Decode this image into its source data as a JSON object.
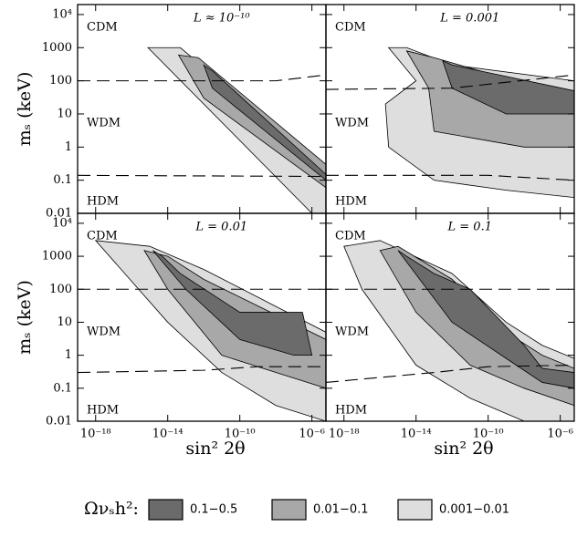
{
  "axes": {
    "log_x": true,
    "log_y": true,
    "xlim": [
      1e-19,
      6e-06
    ],
    "xticks": [
      {
        "value": 1e-18,
        "label": "10⁻¹⁸"
      },
      {
        "value": 1e-14,
        "label": "10⁻¹⁴"
      },
      {
        "value": 1e-10,
        "label": "10⁻¹⁰"
      },
      {
        "value": 1e-06,
        "label": "10⁻⁶"
      }
    ],
    "ylim": [
      0.01,
      20000
    ],
    "yticks": [
      {
        "value": 10000,
        "label": "10⁴"
      },
      1000,
      100,
      10,
      1,
      0.1,
      0.01
    ]
  },
  "chart_data": [
    {
      "type": "region",
      "title": "L ≈ 10⁻¹⁰",
      "annotations": [
        "CDM",
        "WDM",
        "HDM"
      ],
      "regions": [
        {
          "color": "#dedede",
          "x": [
            8e-16,
            5e-14,
            6e-06,
            6e-06,
            1e-06
          ],
          "y": [
            1000,
            1000,
            0.2,
            0.01,
            0.01
          ]
        },
        {
          "color": "#a8a8a8",
          "x": [
            4e-14,
            5e-13,
            6e-06,
            6e-06,
            1e-12
          ],
          "y": [
            600,
            500,
            0.3,
            0.06,
            30
          ]
        },
        {
          "color": "#6b6b6b",
          "x": [
            1e-12,
            3e-12,
            6e-06,
            6e-06,
            3e-12
          ],
          "y": [
            300,
            200,
            0.15,
            0.1,
            60
          ]
        }
      ],
      "dashed_lines": [
        {
          "x": [
            1e-19,
            1e-08,
            6e-06
          ],
          "y": [
            100,
            100,
            150
          ]
        },
        {
          "x": [
            1e-19,
            6e-06
          ],
          "y": [
            0.14,
            0.13
          ]
        }
      ],
      "ylabel": "mₛ (keV)"
    },
    {
      "type": "region",
      "title": "L = 0.001",
      "annotations": [
        "CDM",
        "WDM",
        "HDM"
      ],
      "regions": [
        {
          "color": "#dedede",
          "x": [
            3e-16,
            3e-15,
            1e-12,
            6e-06,
            6e-06,
            1e-09,
            1e-13,
            3e-16,
            2e-16,
            1e-14
          ],
          "y": [
            1000,
            1000,
            300,
            100,
            0.03,
            0.05,
            0.1,
            1,
            20,
            100
          ]
        },
        {
          "color": "#a8a8a8",
          "x": [
            3e-15,
            1e-13,
            6e-06,
            6e-06,
            1e-08,
            1e-13,
            5e-14
          ],
          "y": [
            800,
            500,
            30,
            1,
            1,
            3,
            60
          ]
        },
        {
          "color": "#6b6b6b",
          "x": [
            3e-13,
            1e-12,
            6e-06,
            6e-06,
            1e-09,
            1e-12
          ],
          "y": [
            400,
            300,
            50,
            10,
            10,
            60
          ]
        }
      ],
      "dashed_lines": [
        {
          "x": [
            1e-19,
            1e-12,
            6e-06
          ],
          "y": [
            55,
            60,
            150
          ]
        },
        {
          "x": [
            1e-19,
            1e-10,
            6e-06
          ],
          "y": [
            0.14,
            0.14,
            0.1
          ]
        }
      ]
    },
    {
      "type": "region",
      "title": "L = 0.01",
      "annotations": [
        "CDM",
        "WDM",
        "HDM"
      ],
      "regions": [
        {
          "color": "#dedede",
          "x": [
            1e-18,
            1e-15,
            1e-12,
            6e-06,
            6e-06,
            1e-08,
            1e-11,
            1e-14
          ],
          "y": [
            3000,
            2000,
            400,
            5,
            0.01,
            0.03,
            0.3,
            10
          ]
        },
        {
          "color": "#a8a8a8",
          "x": [
            5e-16,
            1e-14,
            1e-12,
            6e-06,
            6e-06,
            1e-08,
            1e-11,
            1e-14
          ],
          "y": [
            1500,
            1000,
            200,
            3,
            0.1,
            0.3,
            1,
            100
          ]
        },
        {
          "color": "#6b6b6b",
          "x": [
            1.5e-15,
            5e-15,
            5e-14,
            1e-10,
            3e-07,
            1e-06,
            1e-07,
            1e-10,
            1e-13
          ],
          "y": [
            1500,
            1000,
            300,
            20,
            20,
            1,
            1,
            3,
            100
          ]
        }
      ],
      "dashed_lines": [
        {
          "x": [
            1e-19,
            6e-06
          ],
          "y": [
            100,
            100
          ]
        },
        {
          "x": [
            1e-19,
            1e-12,
            1e-09,
            6e-06
          ],
          "y": [
            0.3,
            0.35,
            0.45,
            0.45
          ]
        }
      ],
      "xlabel": "sin² 2θ",
      "ylabel": "mₛ (keV)"
    },
    {
      "type": "region",
      "title": "L = 0.1",
      "annotations": [
        "CDM",
        "WDM",
        "HDM"
      ],
      "regions": [
        {
          "color": "#dedede",
          "x": [
            1e-18,
            1e-16,
            1e-12,
            1e-09,
            1e-07,
            6e-06,
            6e-06,
            1e-08,
            1e-11,
            1e-14,
            1e-17
          ],
          "y": [
            2000,
            3000,
            300,
            10,
            2,
            0.8,
            0.01,
            0.01,
            0.05,
            0.5,
            100
          ]
        },
        {
          "color": "#a8a8a8",
          "x": [
            1e-16,
            1e-15,
            1e-12,
            1e-09,
            1e-07,
            6e-06,
            6e-06,
            1e-08,
            1e-11,
            1e-14
          ],
          "y": [
            1500,
            2000,
            200,
            5,
            1,
            0.4,
            0.03,
            0.1,
            0.5,
            20
          ]
        },
        {
          "color": "#6b6b6b",
          "x": [
            1e-15,
            3e-15,
            1e-13,
            1e-11,
            1e-08,
            1e-07,
            6e-06,
            6e-06,
            1e-07,
            1e-09,
            1e-12
          ],
          "y": [
            1500,
            1000,
            300,
            100,
            2,
            0.4,
            0.3,
            0.1,
            0.15,
            0.8,
            10
          ]
        }
      ],
      "dashed_lines": [
        {
          "x": [
            1e-19,
            6e-06
          ],
          "y": [
            100,
            100
          ]
        },
        {
          "x": [
            1e-19,
            1e-13,
            1e-10,
            6e-06
          ],
          "y": [
            0.15,
            0.3,
            0.45,
            0.5
          ]
        }
      ],
      "xlabel": "sin² 2θ"
    }
  ],
  "legend": {
    "title": "Ωνₛh²:",
    "entries": [
      {
        "label": "0.1−0.5",
        "color": "#6b6b6b"
      },
      {
        "label": "0.01−0.1",
        "color": "#a8a8a8"
      },
      {
        "label": "0.001−0.01",
        "color": "#dedede"
      }
    ]
  }
}
